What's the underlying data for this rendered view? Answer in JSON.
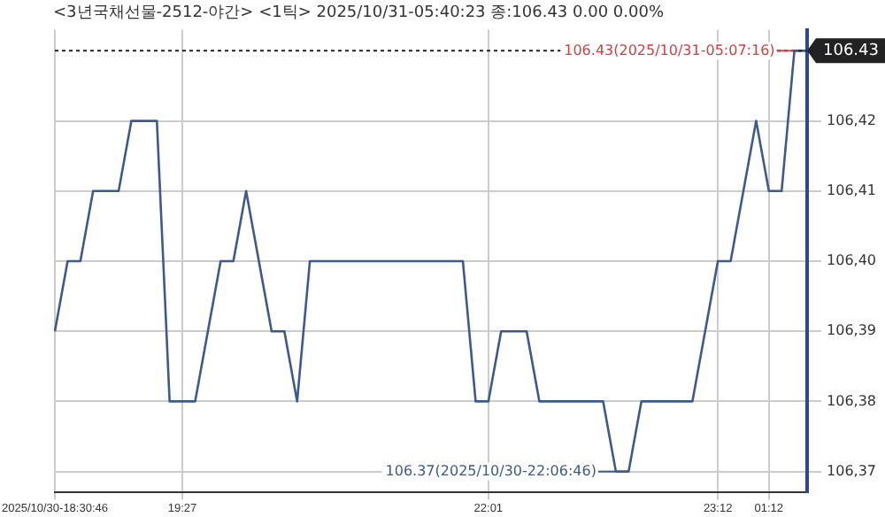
{
  "chart_data": {
    "type": "line",
    "title": "<3년국채선물-2512-야간> <1틱> 2025/10/31-05:40:23 종:106.43 0.00 0.00%",
    "categories": [
      "2025/10/30-18:30:46",
      null,
      null,
      null,
      null,
      null,
      null,
      null,
      null,
      null,
      "19:27",
      null,
      null,
      null,
      null,
      null,
      null,
      null,
      null,
      null,
      null,
      null,
      null,
      null,
      null,
      null,
      null,
      null,
      null,
      null,
      null,
      null,
      null,
      null,
      "22:01",
      null,
      null,
      null,
      null,
      null,
      null,
      null,
      null,
      null,
      null,
      null,
      null,
      null,
      null,
      null,
      null,
      null,
      "23:12",
      null,
      null,
      null,
      "01:12",
      null,
      null,
      null
    ],
    "series": [
      {
        "color": "#3d5a8a",
        "values": [
          106.39,
          106.4,
          106.4,
          106.41,
          106.41,
          106.41,
          106.42,
          106.42,
          106.42,
          106.38,
          106.38,
          106.38,
          106.39,
          106.4,
          106.4,
          106.41,
          106.4,
          106.39,
          106.39,
          106.38,
          106.4,
          106.4,
          106.4,
          106.4,
          106.4,
          106.4,
          106.4,
          106.4,
          106.4,
          106.4,
          106.4,
          106.4,
          106.4,
          106.38,
          106.38,
          106.39,
          106.39,
          106.39,
          106.38,
          106.38,
          106.38,
          106.38,
          106.38,
          106.38,
          106.37,
          106.37,
          106.38,
          106.38,
          106.38,
          106.38,
          106.38,
          106.39,
          106.4,
          106.4,
          106.41,
          106.42,
          106.41,
          106.41,
          106.43,
          106.43
        ]
      }
    ],
    "ylim": [
      106.367,
      106.433
    ],
    "yticks": [
      {
        "value": 106.37,
        "label": "106,37"
      },
      {
        "value": 106.38,
        "label": "106,38"
      },
      {
        "value": 106.39,
        "label": "106,39"
      },
      {
        "value": 106.4,
        "label": "106,40"
      },
      {
        "value": 106.41,
        "label": "106,41"
      },
      {
        "value": 106.42,
        "label": "106,42"
      }
    ],
    "ref_lines": [
      {
        "axis": "y",
        "value": 106.43,
        "label": "106.43",
        "color": "#222222",
        "line_style": "dotted"
      }
    ],
    "annotations": [
      {
        "text": "106.43(2025/10/31-05:07:16)",
        "y": 106.43
      },
      "106.37(2025/10/30-22:06:46)"
    ],
    "grid": true,
    "legend": false,
    "marker": "none",
    "line_style": "solid"
  }
}
